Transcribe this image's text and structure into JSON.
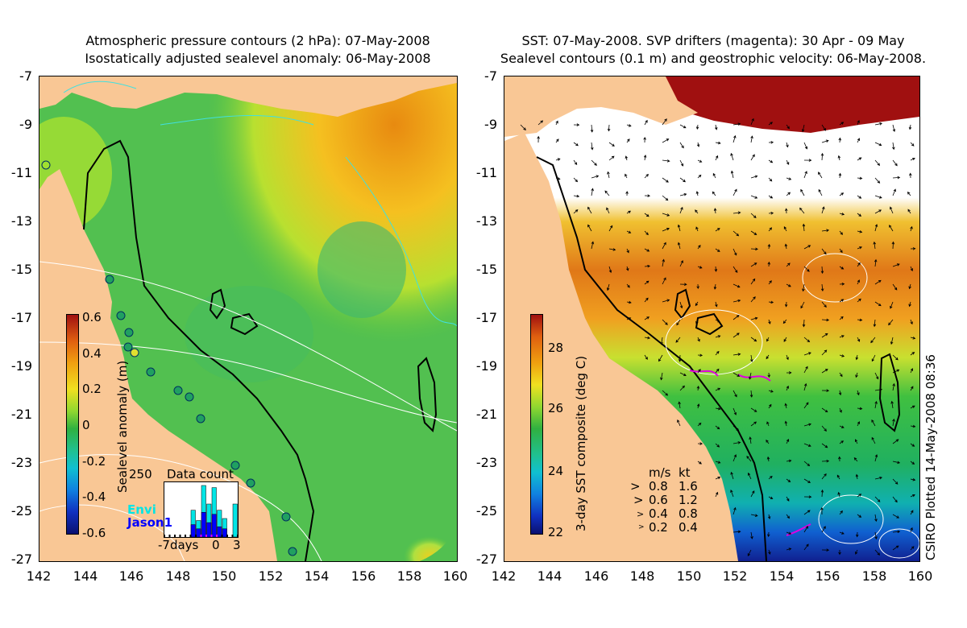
{
  "left_panel": {
    "title_line1": "Atmospheric pressure contours (2 hPa): 07-May-2008",
    "title_line2": "Isostatically adjusted sealevel anomaly: 06-May-2008",
    "y_ticks": [
      "-7",
      "-9",
      "-11",
      "-13",
      "-15",
      "-17",
      "-19",
      "-21",
      "-23",
      "-25",
      "-27"
    ],
    "x_ticks": [
      "142",
      "144",
      "146",
      "148",
      "150",
      "152",
      "154",
      "156",
      "158",
      "160"
    ],
    "colorbar": {
      "label": "Sealevel anomaly (m)",
      "ticks": [
        "0.6",
        "0.4",
        "0.2",
        "0",
        "-0.2",
        "-0.4",
        "-0.6"
      ],
      "range": [
        -0.6,
        0.6
      ]
    },
    "data_count_inset": {
      "title": "Data count",
      "y_max_label": "250",
      "x_labels": [
        "-7days",
        "0",
        "3"
      ],
      "legend_envi": "Envi",
      "legend_jason": "Jason1",
      "envi_color": "#00e5e5",
      "jason_color": "#0000ff",
      "envi_values": [
        0,
        0,
        0,
        0,
        0,
        130,
        80,
        250,
        160,
        240,
        130,
        90,
        0,
        160
      ],
      "jason_values": [
        0,
        0,
        0,
        0,
        0,
        60,
        40,
        120,
        70,
        110,
        50,
        40,
        0,
        0
      ]
    }
  },
  "right_panel": {
    "title_line1": "SST: 07-May-2008. SVP drifters (magenta): 30 Apr - 09 May",
    "title_line2": "Sealevel contours (0.1 m) and geostrophic velocity: 06-May-2008.",
    "y_ticks": [
      "-7",
      "-9",
      "-11",
      "-13",
      "-15",
      "-17",
      "-19",
      "-21",
      "-23",
      "-25",
      "-27"
    ],
    "x_ticks": [
      "142",
      "144",
      "146",
      "148",
      "150",
      "152",
      "154",
      "156",
      "158",
      "160"
    ],
    "colorbar": {
      "label": "3-day SST composite (deg C)",
      "ticks": [
        "28",
        "26",
        "24",
        "22"
      ],
      "range": [
        22,
        29
      ]
    },
    "velocity_legend": {
      "header_ms": "m/s",
      "header_kt": "kt",
      "rows": [
        {
          "ms": "0.8",
          "kt": "1.6"
        },
        {
          "ms": "0.6",
          "kt": "1.2"
        },
        {
          "ms": "0.4",
          "kt": "0.8"
        },
        {
          "ms": "0.2",
          "kt": "0.4"
        }
      ]
    }
  },
  "credit": "CSIRO Plotted 14-May-2008 08:36",
  "colors": {
    "land": "#f9c795",
    "drifter": "#e000e0",
    "contour_white": "#ffffff",
    "contour_cyan": "#40e0e0"
  }
}
